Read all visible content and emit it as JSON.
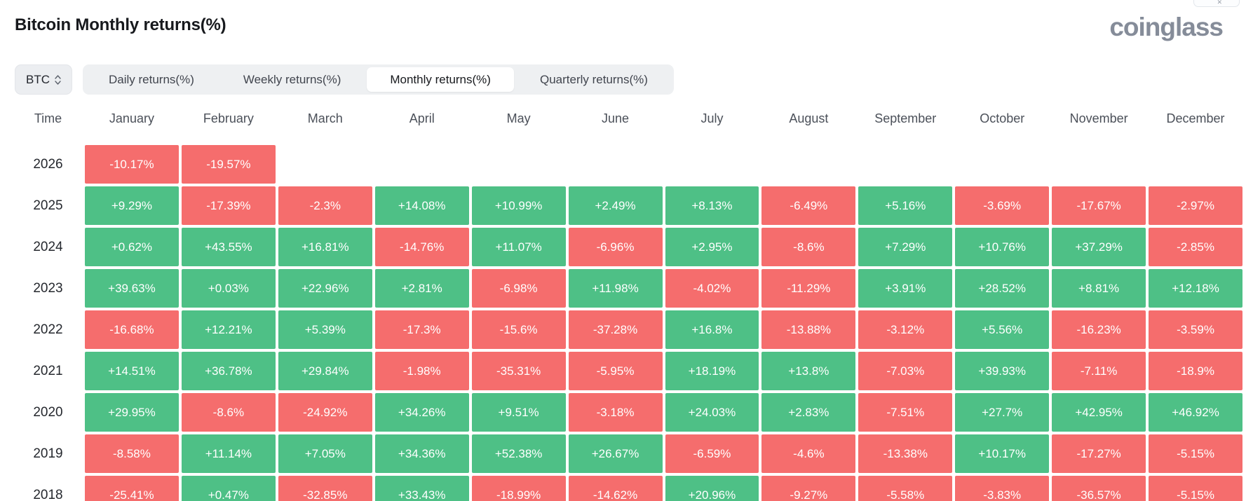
{
  "header": {
    "title": "Bitcoin Monthly returns(%)",
    "logo_text": "coinglass"
  },
  "controls": {
    "symbol": "BTC",
    "symbol_icon": "sort-arrows",
    "tabs": [
      {
        "label": "Daily returns(%)",
        "active": false
      },
      {
        "label": "Weekly returns(%)",
        "active": false
      },
      {
        "label": "Monthly returns(%)",
        "active": true
      },
      {
        "label": "Quarterly returns(%)",
        "active": false
      }
    ]
  },
  "colors": {
    "positive": "#4ec086",
    "negative": "#f56d6d",
    "tab_bar_bg": "#eef0f2",
    "active_tab_bg": "#ffffff",
    "logo_gray": "#858c99"
  },
  "chart_data": {
    "type": "heatmap",
    "title": "Bitcoin Monthly returns(%)",
    "unit": "percent",
    "legend": "green cell = positive monthly return, red cell = negative monthly return",
    "columns": [
      "Time",
      "January",
      "February",
      "March",
      "April",
      "May",
      "June",
      "July",
      "August",
      "September",
      "October",
      "November",
      "December"
    ],
    "rows": [
      {
        "year": "2026",
        "values": [
          "-10.17%",
          "-19.57%",
          null,
          null,
          null,
          null,
          null,
          null,
          null,
          null,
          null,
          null
        ]
      },
      {
        "year": "2025",
        "values": [
          "+9.29%",
          "-17.39%",
          "-2.3%",
          "+14.08%",
          "+10.99%",
          "+2.49%",
          "+8.13%",
          "-6.49%",
          "+5.16%",
          "-3.69%",
          "-17.67%",
          "-2.97%"
        ]
      },
      {
        "year": "2024",
        "values": [
          "+0.62%",
          "+43.55%",
          "+16.81%",
          "-14.76%",
          "+11.07%",
          "-6.96%",
          "+2.95%",
          "-8.6%",
          "+7.29%",
          "+10.76%",
          "+37.29%",
          "-2.85%"
        ]
      },
      {
        "year": "2023",
        "values": [
          "+39.63%",
          "+0.03%",
          "+22.96%",
          "+2.81%",
          "-6.98%",
          "+11.98%",
          "-4.02%",
          "-11.29%",
          "+3.91%",
          "+28.52%",
          "+8.81%",
          "+12.18%"
        ]
      },
      {
        "year": "2022",
        "values": [
          "-16.68%",
          "+12.21%",
          "+5.39%",
          "-17.3%",
          "-15.6%",
          "-37.28%",
          "+16.8%",
          "-13.88%",
          "-3.12%",
          "+5.56%",
          "-16.23%",
          "-3.59%"
        ]
      },
      {
        "year": "2021",
        "values": [
          "+14.51%",
          "+36.78%",
          "+29.84%",
          "-1.98%",
          "-35.31%",
          "-5.95%",
          "+18.19%",
          "+13.8%",
          "-7.03%",
          "+39.93%",
          "-7.11%",
          "-18.9%"
        ]
      },
      {
        "year": "2020",
        "values": [
          "+29.95%",
          "-8.6%",
          "-24.92%",
          "+34.26%",
          "+9.51%",
          "-3.18%",
          "+24.03%",
          "+2.83%",
          "-7.51%",
          "+27.7%",
          "+42.95%",
          "+46.92%"
        ]
      },
      {
        "year": "2019",
        "values": [
          "-8.58%",
          "+11.14%",
          "+7.05%",
          "+34.36%",
          "+52.38%",
          "+26.67%",
          "-6.59%",
          "-4.6%",
          "-13.38%",
          "+10.17%",
          "-17.27%",
          "-5.15%"
        ]
      },
      {
        "year": "2018",
        "values": [
          "-25.41%",
          "+0.47%",
          "-32.85%",
          "+33.43%",
          "-18.99%",
          "-14.62%",
          "+20.96%",
          "-9.27%",
          "-5.58%",
          "-3.83%",
          "-36.57%",
          "-5.15%"
        ]
      }
    ]
  }
}
